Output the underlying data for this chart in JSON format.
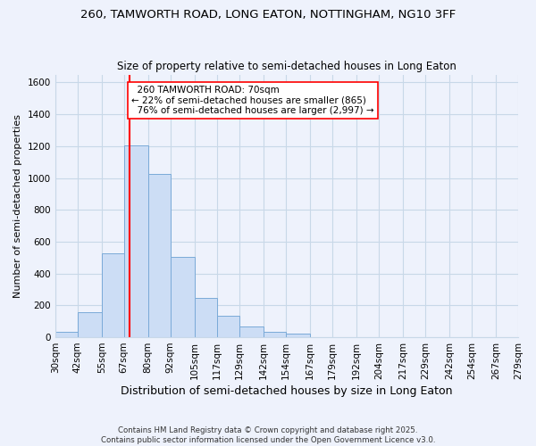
{
  "title": "260, TAMWORTH ROAD, LONG EATON, NOTTINGHAM, NG10 3FF",
  "subtitle": "Size of property relative to semi-detached houses in Long Eaton",
  "xlabel": "Distribution of semi-detached houses by size in Long Eaton",
  "ylabel": "Number of semi-detached properties",
  "bin_edges": [
    30,
    42,
    55,
    67,
    80,
    92,
    105,
    117,
    129,
    142,
    154,
    167,
    179,
    192,
    204,
    217,
    229,
    242,
    254,
    267,
    279
  ],
  "bin_labels": [
    "30sqm",
    "42sqm",
    "55sqm",
    "67sqm",
    "80sqm",
    "92sqm",
    "105sqm",
    "117sqm",
    "129sqm",
    "142sqm",
    "154sqm",
    "167sqm",
    "179sqm",
    "192sqm",
    "204sqm",
    "217sqm",
    "229sqm",
    "242sqm",
    "254sqm",
    "267sqm",
    "279sqm"
  ],
  "counts": [
    35,
    160,
    525,
    1205,
    1025,
    505,
    245,
    135,
    65,
    35,
    20,
    0,
    0,
    0,
    0,
    0,
    0,
    0,
    0,
    0
  ],
  "bar_color": "#ccddf5",
  "bar_edge_color": "#7aaad8",
  "property_size": 70,
  "property_label": "260 TAMWORTH ROAD: 70sqm",
  "pct_smaller": 22,
  "pct_larger": 76,
  "n_smaller": 865,
  "n_larger": 2997,
  "vline_color": "red",
  "ylim": [
    0,
    1650
  ],
  "yticks": [
    0,
    200,
    400,
    600,
    800,
    1000,
    1200,
    1400,
    1600
  ],
  "grid_color": "#c8d8e8",
  "bg_color": "#eef2fc",
  "footer1": "Contains HM Land Registry data © Crown copyright and database right 2025.",
  "footer2": "Contains public sector information licensed under the Open Government Licence v3.0."
}
